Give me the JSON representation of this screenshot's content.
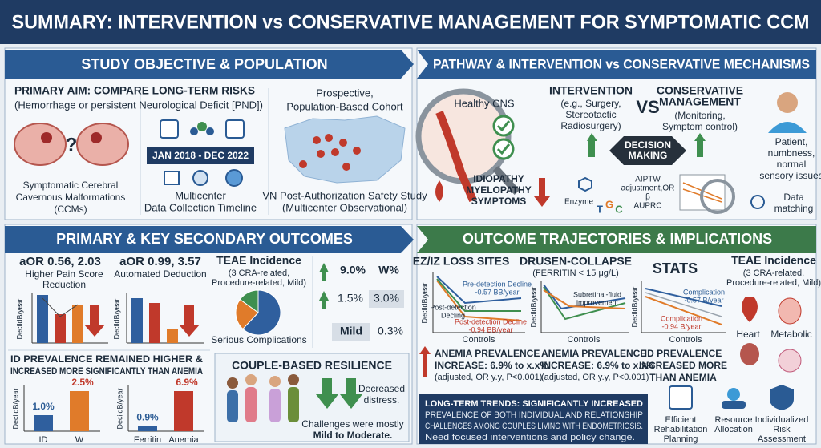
{
  "title": "SUMMARY: INTERVENTION vs CONSERVATIVE MANAGEMENT FOR SYMPTOMATIC CCM",
  "objective": {
    "heading": "STUDY OBJECTIVE & POPULATION",
    "aim": "PRIMARY AIM: COMPARE LONG-TERM RISKS",
    "aim_detail": "(Hemorrhage or persistent Neurological Deficit [PND])",
    "brain_mark": "?",
    "brain_label": [
      "Symptomatic Cerebral",
      "Cavernous Malformations",
      "(CCMs)"
    ],
    "timeline": "JAN 2018 - DEC 2022",
    "timeline_label": [
      "Multicenter",
      "Data Collection Timeline"
    ],
    "cohort": [
      "Prospective,",
      "Population-Based Cohort"
    ],
    "study": [
      "VN Post-Authorization Safety Study",
      "(Multicenter Observational)"
    ]
  },
  "pathway": {
    "heading": "PATHWAY & INTERVENTION vs CONSERVATIVE MECHANISMS",
    "healthy": "Healthy CNS",
    "idiopathy": [
      "IDIOPATHY",
      "MYELOPATHY",
      "SYMPTOMS"
    ],
    "enzyme": "Enzyme",
    "letters": [
      "T",
      "G",
      "C"
    ],
    "intervention": "INTERVENTION",
    "intervention_detail": [
      "(e.g., Surgery,",
      "Stereotactic",
      "Radiosurgery)"
    ],
    "vs": "VS",
    "conservative": [
      "CONSERVATIVE",
      "MANAGEMENT"
    ],
    "conservative_detail": [
      "(Monitoring,",
      "Symptom control)"
    ],
    "decision": [
      "DECISION",
      "MAKING"
    ],
    "methods": [
      "AIPTW",
      "adjustment,OR",
      "β",
      "AUPRC"
    ],
    "patient": [
      "Patient,",
      "numbness,",
      "normal",
      "sensory issues"
    ],
    "matching": [
      "Data",
      "matching"
    ]
  },
  "outcomes": {
    "heading": "PRIMARY & KEY SECONDARY OUTCOMES",
    "chart1": {
      "title": "aOR 0.56, 2.03",
      "subtitle": [
        "Higher Pain Score",
        "Reduction"
      ],
      "ylabel": "DecildB/year"
    },
    "chart2": {
      "title": "aOR 0.99, 3.57",
      "subtitle": [
        "Automated Deduction"
      ],
      "ylabel": "DecildB/year"
    },
    "teae": {
      "title": "TEAE Incidence",
      "detail": [
        "(3 CRA-related,",
        "Procedure-related, Mild)"
      ],
      "caption": "Serious Complications",
      "values": [
        62,
        23,
        15
      ],
      "colors": [
        "#2f5f9e",
        "#e07b2a",
        "#3f8f4f"
      ]
    },
    "stats": [
      [
        "9.0%",
        "W%"
      ],
      [
        "1.5%",
        "3.0%"
      ],
      [
        "Mild",
        "0.3%"
      ]
    ],
    "id_prev": [
      "ID PREVALENCE REMAINED HIGHER &",
      "INCREASED MORE SIGNIFICANTLY THAN ANEMIA"
    ],
    "chart3": {
      "ylabel": "DecildB/year",
      "categories": [
        "ID",
        "W"
      ],
      "values": [
        1.0,
        2.5
      ],
      "value_labels": [
        "1.0%",
        "2.5%"
      ],
      "colors": [
        "#2f5f9e",
        "#e07b2a"
      ]
    },
    "chart4": {
      "ylabel": "DecildB/year",
      "categories": [
        "Ferritin",
        "Anemia"
      ],
      "values": [
        0.9,
        6.9
      ],
      "value_labels": [
        "0.9%",
        "6.9%"
      ],
      "colors": [
        "#2f5f9e",
        "#c0392b"
      ]
    },
    "couple": {
      "title": "COUPLE-BASED RESILIENCE",
      "note": [
        "Decreased",
        "distress."
      ],
      "footer": [
        "Challenges were mostly",
        "Mild to Moderate."
      ]
    }
  },
  "trajectories": {
    "heading": "OUTCOME TRAJECTORIES & IMPLICATIONS",
    "ez": {
      "title": "EZ/IZ LOSS SITES",
      "ylabel": "DecildB/year",
      "xlabel": "Controls",
      "pre": [
        "Pre-detection Decline",
        "-0.57 BB/year"
      ],
      "post": [
        "Post-detection",
        "Decling"
      ],
      "post2": [
        "Post-detection Decline",
        "-0.94 BB/year"
      ]
    },
    "drusen": {
      "title": "DRUSEN-COLLAPSE",
      "detail": "(FERRITIN < 15 μg/L)",
      "ylabel": "DecildB/year",
      "note": [
        "Subretinal-fluid",
        "improvement"
      ],
      "xlabel": "Controls"
    },
    "stats": {
      "title": "STATS",
      "ylabel": "DecildB/year",
      "comp1": [
        "Complication",
        "-0.57 B/year"
      ],
      "comp2": [
        "Complication",
        "-0.94 B/year"
      ],
      "xlabel": "Controls"
    },
    "teae": {
      "title": "TEAE Incidence",
      "detail": [
        "(3 CRA-related,",
        "Procedure-related, Mild)"
      ],
      "organs": [
        "Heart",
        "Metabolic"
      ]
    },
    "anemia1": [
      "ANEMIA PREVALENCE",
      "INCREASE: 6.9% to x.x%",
      "(adjusted, OR y.y, P<0.001)"
    ],
    "anemia2": [
      "ANEMIA PREVALENCE",
      "INCREASE: 6.9% to x.x%",
      "(adjusted, OR y.y, P<0.001)"
    ],
    "id_prev": [
      "ID PREVALENCE",
      "INCREASED MORE",
      "THAN ANEMIA"
    ],
    "long": [
      "LONG-TERM TRENDS: SIGNIFICANTLY INCREASED",
      "PREVALENCE OF BOTH INDIVIDUAL AND RELATIONSHIP",
      "CHALLENGES AMONG COUPLES LIVING WITH ENDOMETRIOSIS.",
      "Need focused interventions and policy change."
    ],
    "actions": [
      [
        "Efficient",
        "Rehabilitation",
        "Planning"
      ],
      [
        "Resource",
        "Allocation"
      ],
      [
        "Individualized",
        "Risk",
        "Assessment"
      ]
    ]
  }
}
